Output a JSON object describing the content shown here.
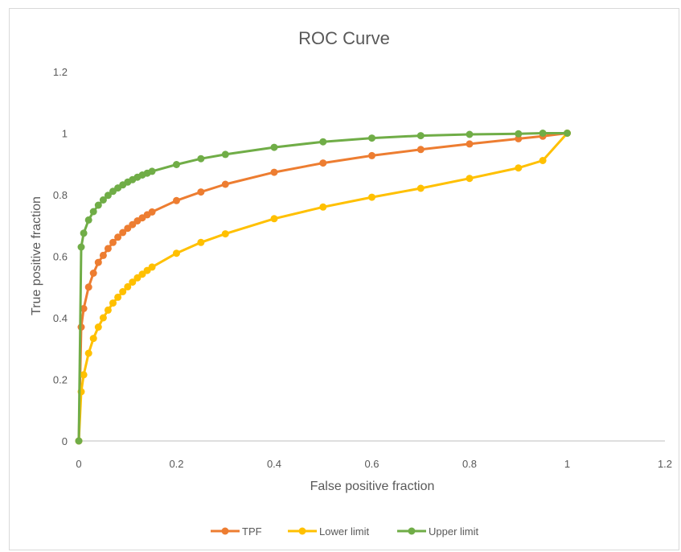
{
  "chart_data": {
    "type": "line",
    "title": "ROC Curve",
    "xlabel": "False positive fraction",
    "ylabel": "True positive fraction",
    "xlim": [
      0,
      1.2
    ],
    "ylim": [
      0,
      1.2
    ],
    "xticks": [
      "0",
      "0.2",
      "0.4",
      "0.6",
      "0.8",
      "1",
      "1.2"
    ],
    "yticks": [
      "0",
      "0.2",
      "0.4",
      "0.6",
      "0.8",
      "1",
      "1.2"
    ],
    "grid": false,
    "legend_position": "bottom",
    "series": [
      {
        "name": "TPF",
        "color": "#ed7d31",
        "points": [
          [
            0,
            0
          ],
          [
            0.005,
            0.37
          ],
          [
            0.01,
            0.43
          ],
          [
            0.02,
            0.5
          ],
          [
            0.03,
            0.545
          ],
          [
            0.04,
            0.58
          ],
          [
            0.05,
            0.603
          ],
          [
            0.06,
            0.625
          ],
          [
            0.07,
            0.645
          ],
          [
            0.08,
            0.662
          ],
          [
            0.09,
            0.677
          ],
          [
            0.1,
            0.691
          ],
          [
            0.11,
            0.703
          ],
          [
            0.12,
            0.715
          ],
          [
            0.13,
            0.725
          ],
          [
            0.14,
            0.735
          ],
          [
            0.15,
            0.744
          ],
          [
            0.2,
            0.781
          ],
          [
            0.25,
            0.809
          ],
          [
            0.3,
            0.834
          ],
          [
            0.4,
            0.873
          ],
          [
            0.5,
            0.903
          ],
          [
            0.6,
            0.927
          ],
          [
            0.7,
            0.947
          ],
          [
            0.8,
            0.965
          ],
          [
            0.9,
            0.982
          ],
          [
            0.95,
            0.99
          ],
          [
            1,
            1
          ]
        ]
      },
      {
        "name": "Lower limit",
        "color": "#ffc000",
        "points": [
          [
            0,
            0
          ],
          [
            0.005,
            0.16
          ],
          [
            0.01,
            0.215
          ],
          [
            0.02,
            0.285
          ],
          [
            0.03,
            0.333
          ],
          [
            0.04,
            0.37
          ],
          [
            0.05,
            0.4
          ],
          [
            0.06,
            0.425
          ],
          [
            0.07,
            0.448
          ],
          [
            0.08,
            0.467
          ],
          [
            0.09,
            0.485
          ],
          [
            0.1,
            0.501
          ],
          [
            0.11,
            0.516
          ],
          [
            0.12,
            0.53
          ],
          [
            0.13,
            0.542
          ],
          [
            0.14,
            0.554
          ],
          [
            0.15,
            0.565
          ],
          [
            0.2,
            0.61
          ],
          [
            0.25,
            0.645
          ],
          [
            0.3,
            0.673
          ],
          [
            0.4,
            0.722
          ],
          [
            0.5,
            0.76
          ],
          [
            0.6,
            0.792
          ],
          [
            0.7,
            0.821
          ],
          [
            0.8,
            0.853
          ],
          [
            0.9,
            0.887
          ],
          [
            0.95,
            0.911
          ],
          [
            1,
            1
          ]
        ]
      },
      {
        "name": "Upper limit",
        "color": "#70ad47",
        "points": [
          [
            0,
            0
          ],
          [
            0.005,
            0.63
          ],
          [
            0.01,
            0.675
          ],
          [
            0.02,
            0.718
          ],
          [
            0.03,
            0.745
          ],
          [
            0.04,
            0.766
          ],
          [
            0.05,
            0.783
          ],
          [
            0.06,
            0.798
          ],
          [
            0.07,
            0.811
          ],
          [
            0.08,
            0.822
          ],
          [
            0.09,
            0.832
          ],
          [
            0.1,
            0.841
          ],
          [
            0.11,
            0.849
          ],
          [
            0.12,
            0.857
          ],
          [
            0.13,
            0.864
          ],
          [
            0.14,
            0.87
          ],
          [
            0.15,
            0.876
          ],
          [
            0.2,
            0.898
          ],
          [
            0.25,
            0.917
          ],
          [
            0.3,
            0.931
          ],
          [
            0.4,
            0.954
          ],
          [
            0.5,
            0.972
          ],
          [
            0.6,
            0.984
          ],
          [
            0.7,
            0.992
          ],
          [
            0.8,
            0.996
          ],
          [
            0.9,
            0.998
          ],
          [
            0.95,
            1.0
          ],
          [
            1,
            1.0
          ]
        ]
      }
    ]
  },
  "colors": {
    "axis": "#bfbfbf",
    "text": "#595959",
    "title": "#595959"
  }
}
